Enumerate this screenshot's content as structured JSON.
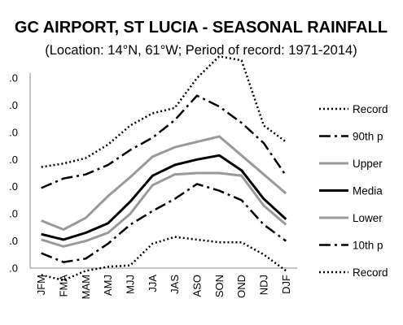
{
  "chart_data": {
    "type": "line",
    "title": "GC AIRPORT, ST LUCIA - SEASONAL RAINFALL",
    "subtitle": "(Location: 14°N, 61°W; Period of record: 1971-2014)",
    "categories": [
      "JFM",
      "FMA",
      "MAM",
      "AMJ",
      "MJJ",
      "JJA",
      "JAS",
      "ASO",
      "SON",
      "OND",
      "NDJ",
      "DJF"
    ],
    "y_tick_labels": [
      ".0",
      ".0",
      ".0",
      ".0",
      ".0",
      ".0",
      ".0",
      ".0"
    ],
    "ylim": [
      0,
      7
    ],
    "grid": false,
    "legend_position": "right",
    "series": [
      {
        "name": "Record",
        "style": "dotted",
        "color": "#000000",
        "values": [
          3.72,
          3.85,
          4.05,
          4.55,
          5.25,
          5.7,
          5.9,
          7.0,
          7.8,
          7.65,
          5.25,
          4.65
        ]
      },
      {
        "name": "90th p",
        "style": "dashdot",
        "color": "#000000",
        "values": [
          2.95,
          3.3,
          3.45,
          3.8,
          4.35,
          4.8,
          5.45,
          6.35,
          5.95,
          5.35,
          4.6,
          3.4
        ]
      },
      {
        "name": "Upper",
        "style": "solid",
        "color": "#999999",
        "values": [
          1.75,
          1.42,
          1.85,
          2.65,
          3.35,
          4.1,
          4.45,
          4.65,
          4.85,
          4.15,
          3.45,
          2.75
        ]
      },
      {
        "name": "Media",
        "style": "solid",
        "color": "#000000",
        "values": [
          1.25,
          1.05,
          1.3,
          1.65,
          2.45,
          3.4,
          3.8,
          4.0,
          4.15,
          3.6,
          2.55,
          1.8
        ]
      },
      {
        "name": "Lower",
        "style": "solid",
        "color": "#999999",
        "values": [
          1.05,
          0.8,
          1.0,
          1.3,
          2.0,
          3.05,
          3.45,
          3.5,
          3.5,
          3.4,
          2.3,
          1.6
        ]
      },
      {
        "name": "10th p",
        "style": "dashdot",
        "color": "#000000",
        "values": [
          0.55,
          0.22,
          0.35,
          0.9,
          1.6,
          2.1,
          2.55,
          3.1,
          2.85,
          2.5,
          1.6,
          1.0
        ]
      },
      {
        "name": "Record",
        "style": "dotted",
        "color": "#000000",
        "values": [
          -0.25,
          -0.45,
          -0.1,
          0.05,
          0.1,
          0.9,
          1.15,
          1.05,
          0.95,
          0.95,
          0.5,
          -0.1
        ]
      }
    ]
  }
}
